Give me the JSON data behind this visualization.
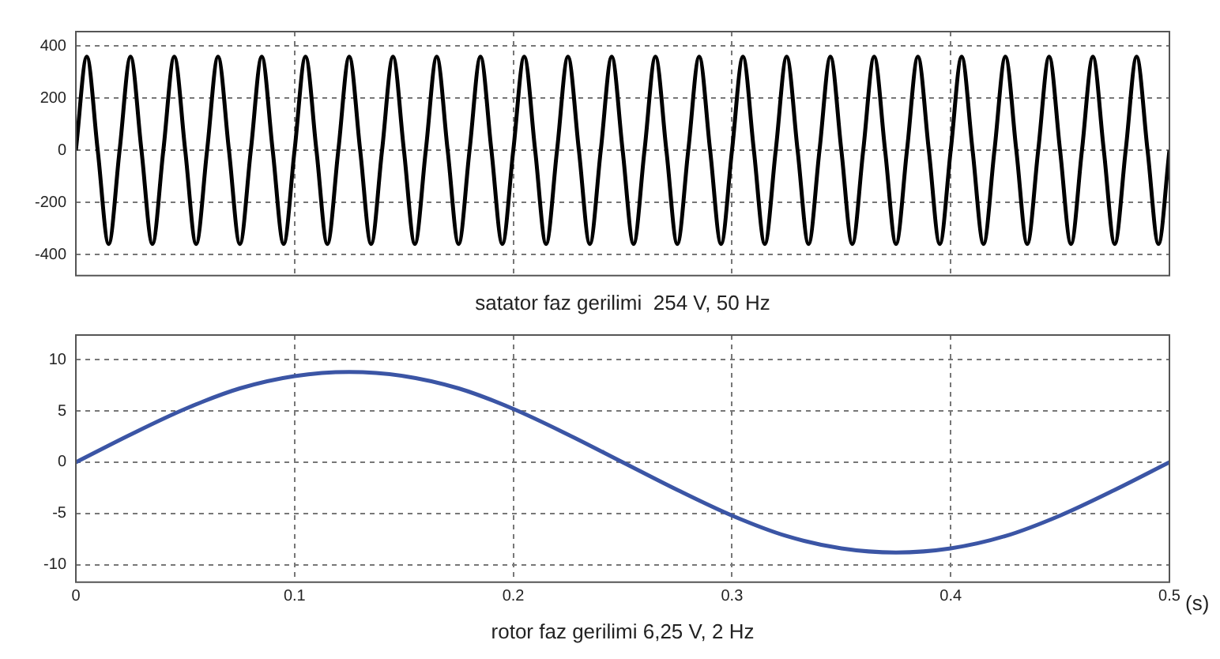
{
  "chart_data": [
    {
      "type": "line",
      "xlabel": "satator faz gerilimi  254 V, 50 Hz",
      "xlim": [
        0,
        0.5
      ],
      "xticks": [
        0,
        0.1,
        0.2,
        0.3,
        0.4,
        0.5
      ],
      "ylim": [
        -480,
        455
      ],
      "yticks": [
        -400,
        -200,
        0,
        200,
        400
      ],
      "grid": true,
      "tick_labels": "y",
      "line_style": "solid",
      "marker": "none",
      "x": [
        0,
        0.005,
        0.01,
        0.015,
        0.02,
        0.025,
        0.03,
        0.035,
        0.04,
        0.045,
        0.05,
        0.055,
        0.06,
        0.065,
        0.07,
        0.075,
        0.08,
        0.085,
        0.09,
        0.095,
        0.1,
        0.105,
        0.11,
        0.115,
        0.12,
        0.125,
        0.13,
        0.135,
        0.14,
        0.145,
        0.15,
        0.155,
        0.16,
        0.165,
        0.17,
        0.175,
        0.18,
        0.185,
        0.19,
        0.195,
        0.2,
        0.205,
        0.21,
        0.215,
        0.22,
        0.225,
        0.23,
        0.235,
        0.24,
        0.245,
        0.25,
        0.255,
        0.26,
        0.265,
        0.27,
        0.275,
        0.28,
        0.285,
        0.29,
        0.295,
        0.3,
        0.305,
        0.31,
        0.315,
        0.32,
        0.325,
        0.33,
        0.335,
        0.34,
        0.345,
        0.35,
        0.355,
        0.36,
        0.365,
        0.37,
        0.375,
        0.38,
        0.385,
        0.39,
        0.395,
        0.4,
        0.405,
        0.41,
        0.415,
        0.42,
        0.425,
        0.43,
        0.435,
        0.44,
        0.445,
        0.45,
        0.455,
        0.46,
        0.465,
        0.47,
        0.475,
        0.48,
        0.485,
        0.49,
        0.495,
        0.5
      ],
      "series": [
        {
          "color": "#000000",
          "values": [
            0,
            359,
            0,
            -359,
            0,
            359,
            0,
            -359,
            0,
            359,
            0,
            -359,
            0,
            359,
            0,
            -359,
            0,
            359,
            0,
            -359,
            0,
            359,
            0,
            -359,
            0,
            359,
            0,
            -359,
            0,
            359,
            0,
            -359,
            0,
            359,
            0,
            -359,
            0,
            359,
            0,
            -359,
            0,
            359,
            0,
            -359,
            0,
            359,
            0,
            -359,
            0,
            359,
            0,
            -359,
            0,
            359,
            0,
            -359,
            0,
            359,
            0,
            -359,
            0,
            359,
            0,
            -359,
            0,
            359,
            0,
            -359,
            0,
            359,
            0,
            -359,
            0,
            359,
            0,
            -359,
            0,
            359,
            0,
            -359,
            0,
            359,
            0,
            -359,
            0,
            359,
            0,
            -359,
            0,
            359,
            0,
            -359,
            0,
            359,
            0,
            -359,
            0,
            359,
            0,
            -359,
            0
          ]
        }
      ]
    },
    {
      "type": "line",
      "xlabel": "rotor faz gerilimi 6,25 V, 2 Hz",
      "annotations": [
        "(s)"
      ],
      "xlim": [
        0,
        0.5
      ],
      "xticks": [
        0,
        0.1,
        0.2,
        0.3,
        0.4,
        0.5
      ],
      "ylim": [
        -11.7,
        12.4
      ],
      "yticks": [
        -10,
        -5,
        0,
        5,
        10
      ],
      "grid": true,
      "line_style": "solid",
      "marker": "none",
      "x": [
        0,
        0.025,
        0.05,
        0.075,
        0.1,
        0.125,
        0.15,
        0.175,
        0.2,
        0.225,
        0.25,
        0.275,
        0.3,
        0.325,
        0.35,
        0.375,
        0.4,
        0.425,
        0.45,
        0.475,
        0.5
      ],
      "series": [
        {
          "color": "#3b55a5",
          "values": [
            0,
            2.7,
            5.2,
            7.2,
            8.4,
            8.8,
            8.4,
            7.2,
            5.2,
            2.7,
            0,
            -2.7,
            -5.2,
            -7.2,
            -8.4,
            -8.8,
            -8.4,
            -7.2,
            -5.2,
            -2.7,
            0
          ]
        }
      ]
    }
  ]
}
